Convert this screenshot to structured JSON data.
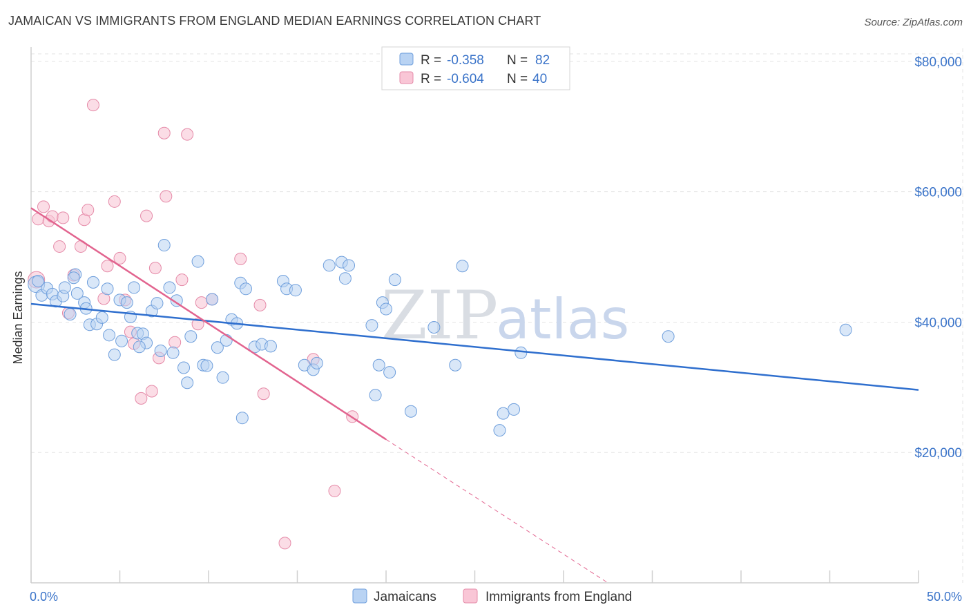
{
  "header": {
    "title": "JAMAICAN VS IMMIGRANTS FROM ENGLAND MEDIAN EARNINGS CORRELATION CHART",
    "source": "Source: ZipAtlas.com"
  },
  "legend": {
    "r_label": "R =",
    "n_label": "N =",
    "rows": [
      {
        "r": "-0.358",
        "n": "82"
      },
      {
        "r": "-0.604",
        "n": "40"
      }
    ]
  },
  "watermark": {
    "zip": "ZIP",
    "atlas": "atlas"
  },
  "colors": {
    "jamaicans_fill": "#b9d3f3",
    "jamaicans_stroke": "#6f9fdc",
    "jamaicans_line": "#2f6fce",
    "england_fill": "#f9c6d6",
    "england_stroke": "#e58aa8",
    "england_line": "#e2648f",
    "axis_label": "#3b74c9",
    "grid": "#e3e3e3"
  },
  "chart_data": {
    "type": "scatter",
    "title": "JAMAICAN VS IMMIGRANTS FROM ENGLAND MEDIAN EARNINGS CORRELATION CHART",
    "xlabel": "",
    "ylabel": "Median Earnings",
    "xlim": [
      0,
      50
    ],
    "ylim": [
      0,
      82000
    ],
    "x_tick_labels": [
      "0.0%",
      "50.0%"
    ],
    "y_ticks": [
      20000,
      40000,
      60000,
      80000
    ],
    "y_tick_labels": [
      "$20,000",
      "$40,000",
      "$60,000",
      "$80,000"
    ],
    "grid": true,
    "legend_position": "top-center",
    "series": [
      {
        "name": "Jamaicans",
        "r": -0.358,
        "n": 82,
        "trend": {
          "x": [
            0,
            50
          ],
          "y": [
            42800,
            29600
          ]
        },
        "points": [
          [
            0.3,
            45800
          ],
          [
            0.6,
            44100
          ],
          [
            0.9,
            45200
          ],
          [
            1.2,
            44300
          ],
          [
            1.4,
            43200
          ],
          [
            1.8,
            44000
          ],
          [
            1.9,
            45300
          ],
          [
            2.2,
            41200
          ],
          [
            2.5,
            47300
          ],
          [
            2.6,
            44400
          ],
          [
            3.0,
            43000
          ],
          [
            3.1,
            42100
          ],
          [
            3.3,
            39600
          ],
          [
            3.5,
            46100
          ],
          [
            3.7,
            39700
          ],
          [
            4.0,
            40700
          ],
          [
            4.3,
            45100
          ],
          [
            4.4,
            38000
          ],
          [
            4.7,
            35000
          ],
          [
            5.0,
            43400
          ],
          [
            5.1,
            37100
          ],
          [
            5.4,
            43000
          ],
          [
            5.6,
            40800
          ],
          [
            5.8,
            45300
          ],
          [
            6.0,
            38300
          ],
          [
            6.3,
            38200
          ],
          [
            6.5,
            36800
          ],
          [
            6.8,
            41700
          ],
          [
            7.1,
            42900
          ],
          [
            7.3,
            35600
          ],
          [
            7.5,
            51800
          ],
          [
            7.8,
            45300
          ],
          [
            8.0,
            35300
          ],
          [
            8.2,
            43300
          ],
          [
            8.6,
            33000
          ],
          [
            8.8,
            30700
          ],
          [
            9.0,
            37800
          ],
          [
            9.4,
            49300
          ],
          [
            9.7,
            33400
          ],
          [
            9.9,
            33300
          ],
          [
            10.2,
            43500
          ],
          [
            10.5,
            36100
          ],
          [
            10.8,
            31500
          ],
          [
            11.0,
            37200
          ],
          [
            11.3,
            40400
          ],
          [
            11.6,
            39800
          ],
          [
            11.8,
            46000
          ],
          [
            11.9,
            25300
          ],
          [
            12.1,
            45100
          ],
          [
            12.6,
            36200
          ],
          [
            13.0,
            36600
          ],
          [
            13.5,
            36300
          ],
          [
            14.2,
            46300
          ],
          [
            14.4,
            45100
          ],
          [
            14.9,
            44900
          ],
          [
            15.4,
            33400
          ],
          [
            15.9,
            32700
          ],
          [
            16.1,
            33700
          ],
          [
            16.8,
            48700
          ],
          [
            17.5,
            49200
          ],
          [
            17.7,
            46700
          ],
          [
            17.9,
            48700
          ],
          [
            19.2,
            39500
          ],
          [
            19.4,
            28800
          ],
          [
            19.6,
            33400
          ],
          [
            19.8,
            43000
          ],
          [
            20.0,
            42000
          ],
          [
            20.2,
            32300
          ],
          [
            20.5,
            46500
          ],
          [
            21.4,
            26300
          ],
          [
            22.7,
            39200
          ],
          [
            23.9,
            33400
          ],
          [
            24.3,
            48600
          ],
          [
            26.4,
            23400
          ],
          [
            26.6,
            26000
          ],
          [
            27.2,
            26600
          ],
          [
            27.6,
            35300
          ],
          [
            35.9,
            37800
          ],
          [
            45.9,
            38800
          ],
          [
            0.4,
            46300
          ],
          [
            2.4,
            46800
          ],
          [
            6.1,
            36200
          ]
        ]
      },
      {
        "name": "Immigrants from England",
        "r": -0.604,
        "n": 40,
        "trend": {
          "x": [
            0,
            20
          ],
          "y": [
            57500,
            22000
          ],
          "dashed_to": {
            "x": 32.5,
            "y": 0
          }
        },
        "points": [
          [
            0.3,
            46500
          ],
          [
            0.4,
            55800
          ],
          [
            0.7,
            57700
          ],
          [
            1.0,
            55500
          ],
          [
            1.2,
            56200
          ],
          [
            1.6,
            51600
          ],
          [
            1.8,
            56000
          ],
          [
            2.1,
            41400
          ],
          [
            2.4,
            47200
          ],
          [
            2.8,
            51600
          ],
          [
            3.0,
            55700
          ],
          [
            3.2,
            57200
          ],
          [
            3.5,
            73300
          ],
          [
            4.1,
            43600
          ],
          [
            4.3,
            48600
          ],
          [
            4.7,
            58500
          ],
          [
            5.0,
            49800
          ],
          [
            5.3,
            43400
          ],
          [
            5.6,
            38500
          ],
          [
            5.8,
            36700
          ],
          [
            6.2,
            28300
          ],
          [
            6.5,
            56300
          ],
          [
            6.8,
            29400
          ],
          [
            7.0,
            48300
          ],
          [
            7.2,
            34500
          ],
          [
            7.5,
            69000
          ],
          [
            7.6,
            59300
          ],
          [
            8.1,
            36900
          ],
          [
            8.5,
            46500
          ],
          [
            8.8,
            68800
          ],
          [
            9.4,
            39700
          ],
          [
            9.6,
            43000
          ],
          [
            10.2,
            43500
          ],
          [
            11.8,
            49700
          ],
          [
            12.9,
            42600
          ],
          [
            13.1,
            29000
          ],
          [
            15.9,
            34300
          ],
          [
            17.1,
            14100
          ],
          [
            18.1,
            25500
          ],
          [
            14.3,
            6100
          ]
        ]
      }
    ]
  },
  "bottom_legend": {
    "items": [
      "Jamaicans",
      "Immigrants from England"
    ]
  }
}
